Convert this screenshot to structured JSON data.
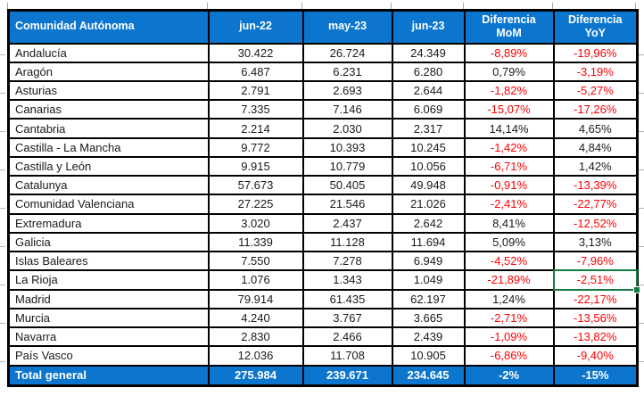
{
  "colors": {
    "header_bg": "#0c76cf",
    "negative_text": "#ff0000",
    "body_text": "#1a1a1a",
    "selection_green": "#107c41",
    "grid_border": "#000000"
  },
  "table": {
    "columns": [
      {
        "key": "name",
        "label": "Comunidad Autónoma"
      },
      {
        "key": "jun22",
        "label": "jun-22"
      },
      {
        "key": "may23",
        "label": "may-23"
      },
      {
        "key": "jun23",
        "label": "jun-23"
      },
      {
        "key": "mom",
        "label": "Diferencia\nMoM"
      },
      {
        "key": "yoy",
        "label": "Diferencia\nYoY"
      }
    ],
    "rows": [
      {
        "name": "Andalucía",
        "jun22": "30.422",
        "may23": "26.724",
        "jun23": "24.349",
        "mom": "-8,89%",
        "yoy": "-19,96%"
      },
      {
        "name": "Aragón",
        "jun22": "6.487",
        "may23": "6.231",
        "jun23": "6.280",
        "mom": "0,79%",
        "yoy": "-3,19%"
      },
      {
        "name": "Asturias",
        "jun22": "2.791",
        "may23": "2.693",
        "jun23": "2.644",
        "mom": "-1,82%",
        "yoy": "-5,27%"
      },
      {
        "name": "Canarias",
        "jun22": "7.335",
        "may23": "7.146",
        "jun23": "6.069",
        "mom": "-15,07%",
        "yoy": "-17,26%"
      },
      {
        "name": "Cantabria",
        "jun22": "2.214",
        "may23": "2.030",
        "jun23": "2.317",
        "mom": "14,14%",
        "yoy": "4,65%"
      },
      {
        "name": "Castilla - La Mancha",
        "jun22": "9.772",
        "may23": "10.393",
        "jun23": "10.245",
        "mom": "-1,42%",
        "yoy": "4,84%"
      },
      {
        "name": "Castilla y León",
        "jun22": "9.915",
        "may23": "10.779",
        "jun23": "10.056",
        "mom": "-6,71%",
        "yoy": "1,42%"
      },
      {
        "name": "Catalunya",
        "jun22": "57.673",
        "may23": "50.405",
        "jun23": "49.948",
        "mom": "-0,91%",
        "yoy": "-13,39%"
      },
      {
        "name": "Comunidad Valenciana",
        "jun22": "27.225",
        "may23": "21.546",
        "jun23": "21.026",
        "mom": "-2,41%",
        "yoy": "-22,77%"
      },
      {
        "name": "Extremadura",
        "jun22": "3.020",
        "may23": "2.437",
        "jun23": "2.642",
        "mom": "8,41%",
        "yoy": "-12,52%"
      },
      {
        "name": "Galicia",
        "jun22": "11.339",
        "may23": "11.128",
        "jun23": "11.694",
        "mom": "5,09%",
        "yoy": "3,13%"
      },
      {
        "name": "Islas Baleares",
        "jun22": "7.550",
        "may23": "7.278",
        "jun23": "6.949",
        "mom": "-4,52%",
        "yoy": "-7,96%"
      },
      {
        "name": "La Rioja",
        "jun22": "1.076",
        "may23": "1.343",
        "jun23": "1.049",
        "mom": "-21,89%",
        "yoy": "-2,51%"
      },
      {
        "name": "Madrid",
        "jun22": "79.914",
        "may23": "61.435",
        "jun23": "62.197",
        "mom": "1,24%",
        "yoy": "-22,17%"
      },
      {
        "name": "Murcia",
        "jun22": "4.240",
        "may23": "3.767",
        "jun23": "3.665",
        "mom": "-2,71%",
        "yoy": "-13,56%"
      },
      {
        "name": "Navarra",
        "jun22": "2.830",
        "may23": "2.466",
        "jun23": "2.439",
        "mom": "-1,09%",
        "yoy": "-13,82%"
      },
      {
        "name": "País Vasco",
        "jun22": "12.036",
        "may23": "11.708",
        "jun23": "10.905",
        "mom": "-6,86%",
        "yoy": "-9,40%"
      }
    ],
    "total": {
      "name": "Total general",
      "jun22": "275.984",
      "may23": "239.671",
      "jun23": "234.645",
      "mom": "-2%",
      "yoy": "-15%"
    }
  },
  "selection": {
    "row_index": 12,
    "column": "yoy"
  }
}
